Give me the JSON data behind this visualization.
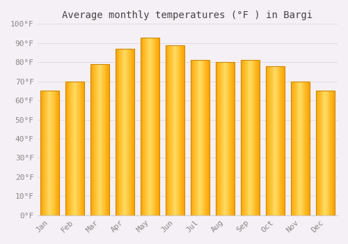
{
  "title": "Average monthly temperatures (°F ) in Bargi",
  "months": [
    "Jan",
    "Feb",
    "Mar",
    "Apr",
    "May",
    "Jun",
    "Jul",
    "Aug",
    "Sep",
    "Oct",
    "Nov",
    "Dec"
  ],
  "values": [
    65,
    70,
    79,
    87,
    93,
    89,
    81,
    80,
    81,
    78,
    70,
    65
  ],
  "bar_color_center": "#FFD966",
  "bar_color_edge": "#FFA500",
  "background_color": "#f5f0f5",
  "plot_bg_color": "#f5f0f5",
  "ylim": [
    0,
    100
  ],
  "yticks": [
    0,
    10,
    20,
    30,
    40,
    50,
    60,
    70,
    80,
    90,
    100
  ],
  "ytick_labels": [
    "0°F",
    "10°F",
    "20°F",
    "30°F",
    "40°F",
    "50°F",
    "60°F",
    "70°F",
    "80°F",
    "90°F",
    "100°F"
  ],
  "grid_color": "#dddddd",
  "title_fontsize": 10,
  "tick_fontsize": 8,
  "tick_color": "#888888",
  "font_family": "monospace",
  "bar_width": 0.75
}
